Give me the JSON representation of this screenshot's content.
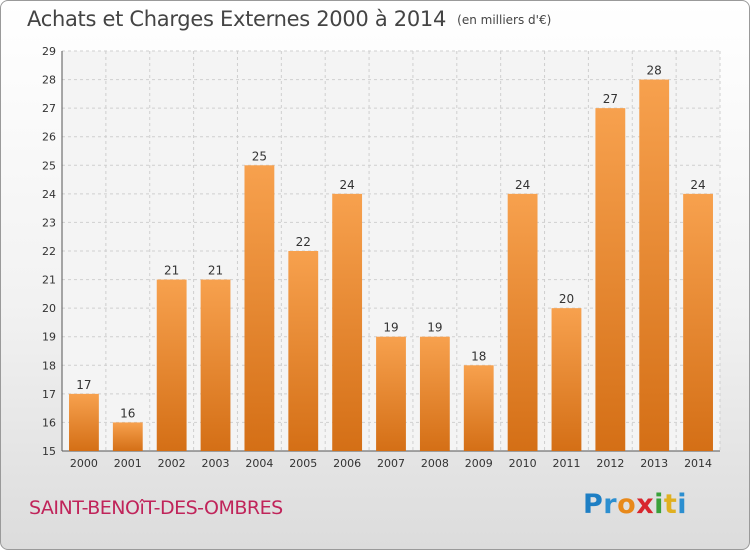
{
  "title": "Achats et Charges Externes 2000 à 2014",
  "subtitle": "(en milliers d'€)",
  "commune": "SAINT-BENOîT-DES-OMBRES",
  "logo": {
    "letters": [
      {
        "ch": "P",
        "color": "#1e7fc4"
      },
      {
        "ch": "r",
        "color": "#2c8fd0"
      },
      {
        "ch": "o",
        "color": "#e8891a"
      },
      {
        "ch": "x",
        "color": "#d8262e"
      },
      {
        "ch": "i",
        "color": "#3aa13a"
      },
      {
        "ch": "t",
        "color": "#e0b020"
      },
      {
        "ch": "i",
        "color": "#2c8fd0"
      }
    ]
  },
  "colors": {
    "bar_top": "#f7a14e",
    "bar_bottom": "#d46f16",
    "grid": "#cfcfcf"
  },
  "chart_data": {
    "type": "bar",
    "categories": [
      "2000",
      "2001",
      "2002",
      "2003",
      "2004",
      "2005",
      "2006",
      "2007",
      "2008",
      "2009",
      "2010",
      "2011",
      "2012",
      "2013",
      "2014"
    ],
    "values": [
      17,
      16,
      21,
      21,
      25,
      22,
      24,
      19,
      19,
      18,
      24,
      20,
      27,
      28,
      24
    ],
    "ylim": [
      15,
      29
    ],
    "yticks": [
      15,
      16,
      17,
      18,
      19,
      20,
      21,
      22,
      23,
      24,
      25,
      26,
      27,
      28,
      29
    ],
    "grid": true,
    "legend": "none"
  }
}
